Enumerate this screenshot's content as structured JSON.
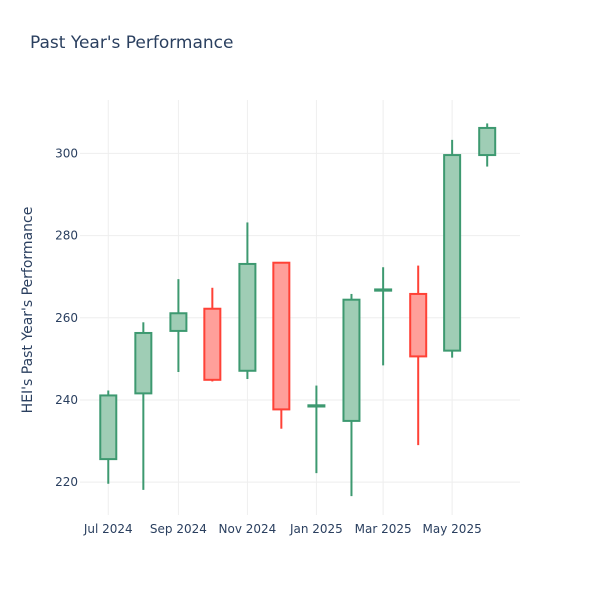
{
  "chart_data": {
    "type": "candlestick",
    "title": "Past Year's Performance",
    "ylabel": "HEI's Past Year's Performance",
    "xlabel": "",
    "ylim": [
      212,
      313
    ],
    "yticks": [
      220,
      240,
      260,
      280,
      300
    ],
    "xticks": [
      {
        "label": "Jul 2024",
        "date": "2024-07-01"
      },
      {
        "label": "Sep 2024",
        "date": "2024-09-01"
      },
      {
        "label": "Nov 2024",
        "date": "2024-11-01"
      },
      {
        "label": "Jan 2025",
        "date": "2025-01-01"
      },
      {
        "label": "Mar 2025",
        "date": "2025-03-01"
      },
      {
        "label": "May 2025",
        "date": "2025-05-01"
      }
    ],
    "xrange": [
      "2024-06-06",
      "2025-06-30"
    ],
    "grid": true,
    "colors": {
      "up": "#3d9970",
      "up_fill": "#9fcdb5",
      "down": "#ff4136",
      "down_fill": "#ff9f9a",
      "grid": "#eeeeee"
    },
    "candles": [
      {
        "date": "2024-07-01",
        "open": 225.6,
        "high": 242.3,
        "low": 219.6,
        "close": 241.1
      },
      {
        "date": "2024-08-01",
        "open": 241.6,
        "high": 258.9,
        "low": 218.1,
        "close": 256.3
      },
      {
        "date": "2024-09-01",
        "open": 256.8,
        "high": 269.4,
        "low": 246.8,
        "close": 261.1
      },
      {
        "date": "2024-10-01",
        "open": 262.2,
        "high": 267.3,
        "low": 244.5,
        "close": 244.9
      },
      {
        "date": "2024-11-01",
        "open": 247.1,
        "high": 283.2,
        "low": 245.1,
        "close": 273.1
      },
      {
        "date": "2024-12-01",
        "open": 273.4,
        "high": 273.4,
        "low": 233.0,
        "close": 237.7
      },
      {
        "date": "2025-01-01",
        "open": 238.4,
        "high": 243.5,
        "low": 222.2,
        "close": 238.7
      },
      {
        "date": "2025-02-01",
        "open": 234.9,
        "high": 265.8,
        "low": 216.6,
        "close": 264.4
      },
      {
        "date": "2025-03-01",
        "open": 266.6,
        "high": 272.3,
        "low": 248.4,
        "close": 266.9
      },
      {
        "date": "2025-04-01",
        "open": 265.8,
        "high": 272.7,
        "low": 229.0,
        "close": 250.6
      },
      {
        "date": "2025-05-01",
        "open": 252.0,
        "high": 303.3,
        "low": 250.3,
        "close": 299.6
      },
      {
        "date": "2025-06-01",
        "open": 299.6,
        "high": 307.3,
        "low": 296.8,
        "close": 306.2
      }
    ]
  }
}
